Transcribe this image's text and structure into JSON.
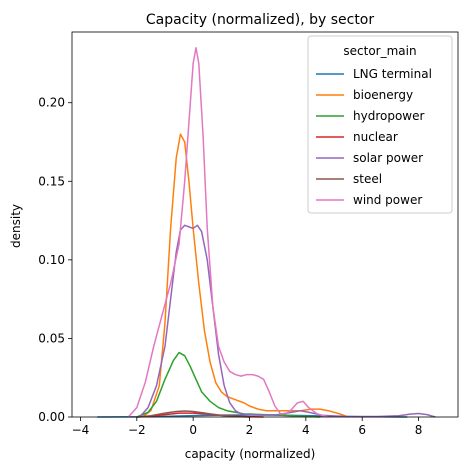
{
  "chart_data": {
    "type": "line",
    "title": "Capacity (normalized), by sector",
    "xlabel": "capacity (normalized)",
    "ylabel": "density",
    "xlim": [
      -4.3,
      9.4
    ],
    "ylim": [
      0,
      0.245
    ],
    "xticks": [
      -4,
      -2,
      0,
      2,
      4,
      6,
      8
    ],
    "yticks": [
      0.0,
      0.05,
      0.1,
      0.15,
      0.2
    ],
    "ytick_labels": [
      "0.00",
      "0.05",
      "0.10",
      "0.15",
      "0.20"
    ],
    "grid": false,
    "legend": {
      "title": "sector_main",
      "placement": "top-right"
    },
    "series": [
      {
        "name": "LNG terminal",
        "color": "#1f77b4",
        "x": [
          -3.4,
          -2,
          -1,
          0,
          1,
          2,
          3,
          4,
          5,
          6,
          7,
          7.6
        ],
        "y": [
          0,
          0.0001,
          0.0004,
          0.0009,
          0.0012,
          0.0013,
          0.0012,
          0.0009,
          0.0005,
          0.0002,
          0.0001,
          0
        ]
      },
      {
        "name": "bioenergy",
        "color": "#ff7f0e",
        "x": [
          -1.8,
          -1.5,
          -1.2,
          -1.0,
          -0.8,
          -0.6,
          -0.45,
          -0.3,
          -0.15,
          0,
          0.2,
          0.4,
          0.6,
          0.8,
          1.0,
          1.2,
          1.5,
          1.8,
          2.0,
          2.3,
          2.6,
          3.0,
          3.4,
          3.8,
          4.2,
          4.5,
          4.8,
          5.2,
          5.5
        ],
        "y": [
          0,
          0.004,
          0.02,
          0.06,
          0.12,
          0.165,
          0.18,
          0.175,
          0.15,
          0.12,
          0.085,
          0.055,
          0.035,
          0.022,
          0.016,
          0.013,
          0.011,
          0.009,
          0.007,
          0.005,
          0.004,
          0.004,
          0.004,
          0.004,
          0.005,
          0.005,
          0.004,
          0.002,
          0
        ]
      },
      {
        "name": "hydropower",
        "color": "#2ca02c",
        "x": [
          -2.0,
          -1.6,
          -1.3,
          -1.0,
          -0.7,
          -0.5,
          -0.3,
          -0.1,
          0.1,
          0.3,
          0.6,
          0.9,
          1.2,
          1.5,
          1.8,
          2.1,
          2.5,
          3.0,
          3.5,
          4.0,
          4.5
        ],
        "y": [
          0,
          0.003,
          0.01,
          0.024,
          0.036,
          0.041,
          0.039,
          0.032,
          0.024,
          0.016,
          0.01,
          0.006,
          0.004,
          0.003,
          0.002,
          0.0018,
          0.0015,
          0.0012,
          0.0008,
          0.0004,
          0
        ]
      },
      {
        "name": "nuclear",
        "color": "#d62728",
        "x": [
          -2.0,
          -1.5,
          -1.0,
          -0.5,
          0,
          0.5,
          1.0,
          1.5,
          2.0,
          2.5
        ],
        "y": [
          0,
          0.0005,
          0.0015,
          0.0025,
          0.0025,
          0.0018,
          0.001,
          0.0006,
          0.0002,
          0
        ]
      },
      {
        "name": "solar power",
        "color": "#9467bd",
        "x": [
          -1.9,
          -1.6,
          -1.3,
          -1.0,
          -0.8,
          -0.6,
          -0.45,
          -0.3,
          -0.15,
          0,
          0.15,
          0.3,
          0.5,
          0.7,
          0.9,
          1.1,
          1.3,
          1.5,
          1.7,
          2.0,
          2.5,
          3.0,
          3.5,
          3.8,
          4.1,
          4.6,
          5.5,
          6.5,
          7.3,
          7.7,
          8.0,
          8.3,
          8.6
        ],
        "y": [
          0,
          0.006,
          0.02,
          0.045,
          0.075,
          0.105,
          0.119,
          0.122,
          0.121,
          0.12,
          0.122,
          0.118,
          0.1,
          0.07,
          0.04,
          0.02,
          0.009,
          0.004,
          0.002,
          0.0015,
          0.0012,
          0.0015,
          0.003,
          0.004,
          0.003,
          0.001,
          0.0003,
          0.0003,
          0.0008,
          0.0018,
          0.0022,
          0.0015,
          0
        ]
      },
      {
        "name": "steel",
        "color": "#8c564b",
        "x": [
          -2.0,
          -1.5,
          -1.0,
          -0.6,
          -0.3,
          0,
          0.3,
          0.6,
          1.0,
          1.5,
          2.0
        ],
        "y": [
          0,
          0.0008,
          0.0025,
          0.0035,
          0.0038,
          0.0035,
          0.0028,
          0.002,
          0.001,
          0.0003,
          0
        ]
      },
      {
        "name": "wind power",
        "color": "#e377c2",
        "x": [
          -2.3,
          -2.0,
          -1.7,
          -1.4,
          -1.1,
          -0.8,
          -0.5,
          -0.3,
          -0.1,
          0,
          0.1,
          0.2,
          0.35,
          0.5,
          0.7,
          0.9,
          1.1,
          1.3,
          1.5,
          1.7,
          1.9,
          2.1,
          2.3,
          2.5,
          2.7,
          2.9,
          3.1,
          3.3,
          3.5,
          3.7,
          3.9,
          4.1,
          4.4,
          4.8
        ],
        "y": [
          0,
          0.006,
          0.022,
          0.045,
          0.065,
          0.085,
          0.11,
          0.15,
          0.2,
          0.225,
          0.235,
          0.225,
          0.18,
          0.12,
          0.07,
          0.045,
          0.035,
          0.029,
          0.027,
          0.026,
          0.027,
          0.027,
          0.026,
          0.024,
          0.016,
          0.007,
          0.002,
          0.002,
          0.005,
          0.009,
          0.01,
          0.006,
          0.002,
          0
        ]
      }
    ]
  }
}
